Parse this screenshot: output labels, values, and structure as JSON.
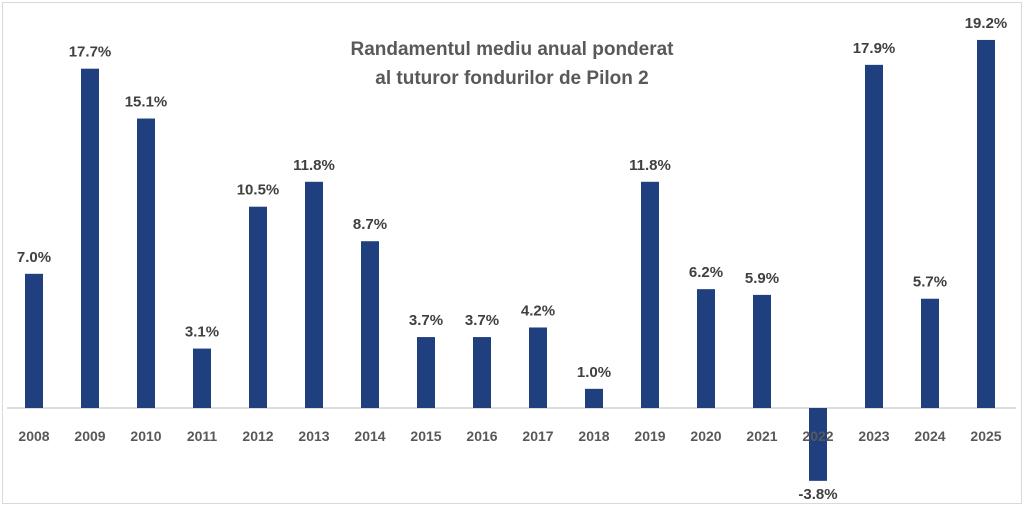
{
  "chart_data": {
    "type": "bar",
    "title": [
      "Randamentul mediu anual ponderat",
      "al tuturor fondurilor de Pilon 2"
    ],
    "categories": [
      "2008",
      "2009",
      "2010",
      "2011",
      "2012",
      "2013",
      "2014",
      "2015",
      "2016",
      "2017",
      "2018",
      "2019",
      "2020",
      "2021",
      "2022",
      "2023",
      "2024",
      "2025"
    ],
    "values": [
      7.0,
      17.7,
      15.1,
      3.1,
      10.5,
      11.8,
      8.7,
      3.7,
      3.7,
      4.2,
      1.0,
      11.8,
      6.2,
      5.9,
      -3.8,
      17.9,
      5.7,
      19.2
    ],
    "labels": [
      "7.0%",
      "17.7%",
      "15.1%",
      "3.1%",
      "10.5%",
      "11.8%",
      "8.7%",
      "3.7%",
      "3.7%",
      "4.2%",
      "1.0%",
      "11.8%",
      "6.2%",
      "5.9%",
      "-3.8%",
      "17.9%",
      "5.7%",
      "19.2%"
    ],
    "bar_color": "#1F3F7F",
    "grid": false,
    "legend": "none",
    "ylim": [
      -4,
      19.5
    ]
  }
}
